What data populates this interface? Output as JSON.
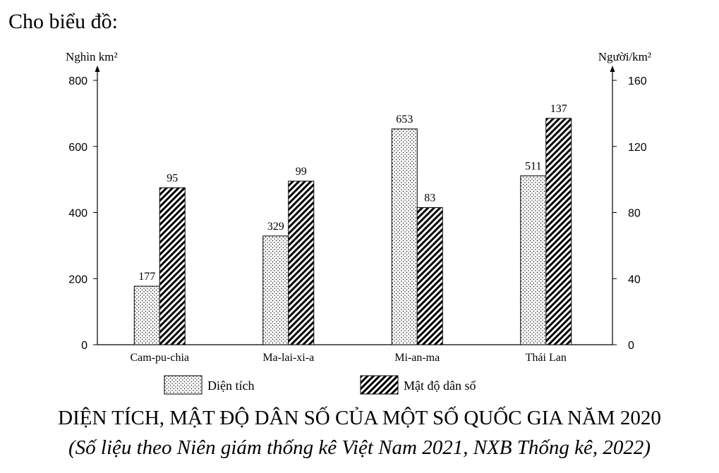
{
  "intro_text": "Cho biểu đồ:",
  "chart_data": {
    "type": "bar",
    "title": "DIỆN TÍCH, MẬT ĐỘ DÂN SỐ CỦA MỘT SỐ QUỐC GIA NĂM 2020",
    "subtitle": "(Số liệu theo Niên giám thống kê Việt Nam 2021, NXB Thống kê, 2022)",
    "categories": [
      "Cam-pu-chia",
      "Ma-lai-xi-a",
      "Mi-an-ma",
      "Thái Lan"
    ],
    "y_left": {
      "label": "Nghìn km²",
      "ylim": [
        0,
        800
      ],
      "ticks": [
        "0",
        "200",
        "400",
        "600",
        "800"
      ]
    },
    "y_right": {
      "label": "Người/km²",
      "ylim": [
        0,
        160
      ],
      "ticks": [
        "0",
        "40",
        "80",
        "120",
        "160"
      ]
    },
    "series": [
      {
        "name": "Diện tích",
        "axis": "left",
        "pattern": "dots",
        "values": [
          177,
          329,
          653,
          511
        ]
      },
      {
        "name": "Mật độ dân số",
        "axis": "right",
        "pattern": "hatch",
        "values": [
          95,
          99,
          83,
          137
        ]
      }
    ],
    "grid": false,
    "legend": "bottom"
  }
}
